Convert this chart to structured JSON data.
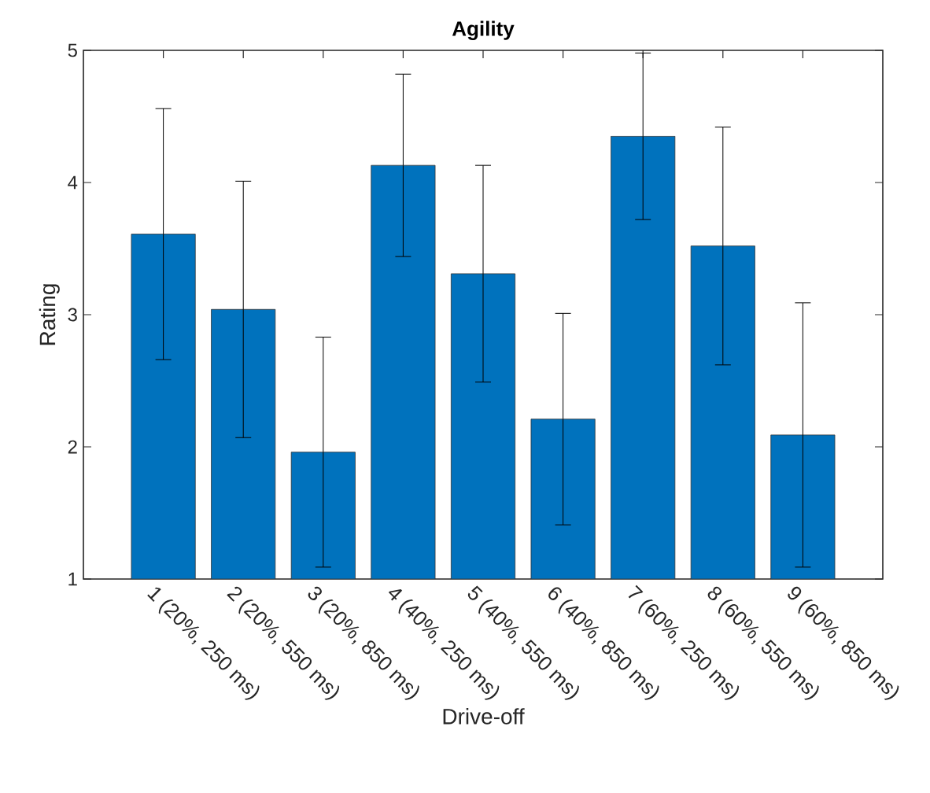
{
  "chart_data": {
    "type": "bar",
    "title": "Agility",
    "xlabel": "Drive-off",
    "ylabel": "Rating",
    "categories": [
      "1 (20%, 250 ms)",
      "2 (20%, 550 ms)",
      "3 (20%, 850 ms)",
      "4 (40%, 250 ms)",
      "5 (40%, 550 ms)",
      "6 (40%, 850 ms)",
      "7 (60%, 250 ms)",
      "8 (60%, 550 ms)",
      "9 (60%, 850 ms)"
    ],
    "values": [
      3.61,
      3.04,
      1.96,
      4.13,
      3.31,
      2.21,
      4.35,
      3.52,
      2.09
    ],
    "errors": [
      0.95,
      0.97,
      0.87,
      0.69,
      0.82,
      0.8,
      0.63,
      0.9,
      1.0
    ],
    "color": "#0072bd",
    "ylim": [
      1,
      5
    ],
    "yticks": [
      1,
      2,
      3,
      4,
      5
    ],
    "grid": false
  }
}
